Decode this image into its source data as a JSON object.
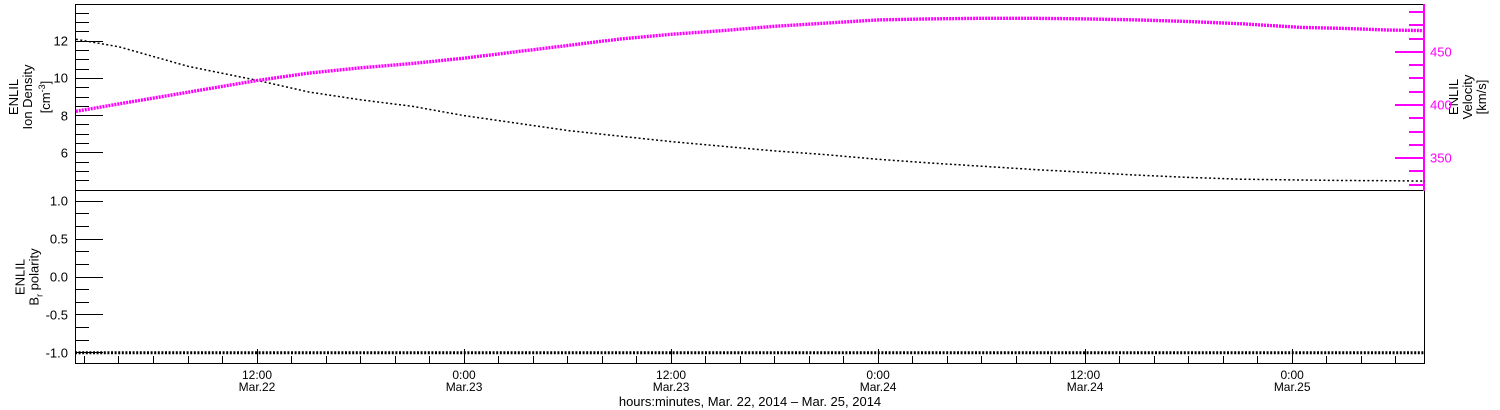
{
  "figure": {
    "background": "#ffffff",
    "curve_colors": {
      "density": "#000000",
      "velocity": "#ff00ff",
      "polarity": "#000000"
    }
  },
  "axes": {
    "density": {
      "title_line1": "ENLIL",
      "title_line2": "Ion Density",
      "unit_prefix": "[cm",
      "unit_sup": "-3",
      "unit_suffix": "]",
      "range": [
        4,
        14
      ],
      "major_ticks": [
        6,
        8,
        10,
        12
      ],
      "major_labels": [
        "6",
        "8",
        "10",
        "12"
      ],
      "minor_step": 0.5
    },
    "velocity": {
      "title_line1": "ENLIL",
      "title_line2": "Velocity",
      "title_line3": "[km/s]",
      "range": [
        320,
        495
      ],
      "major_ticks": [
        350,
        400,
        450
      ],
      "major_labels": [
        "350",
        "400",
        "450"
      ],
      "minor_step": 12.5
    },
    "polarity": {
      "title_line1": "ENLIL",
      "title_line2_prefix": "B",
      "title_line2_sub": "r",
      "title_line2_suffix": " polarity",
      "range": [
        -1.15,
        1.15
      ],
      "major_ticks": [
        -1,
        -0.5,
        0,
        0.5,
        1
      ],
      "major_labels": [
        "-1.0",
        "-0.5",
        "0.0",
        "0.5",
        "1.0"
      ],
      "minor_step": 0.1666667
    },
    "time": {
      "range_hours": [
        1.45,
        79.7
      ],
      "minor_step_hours": 2,
      "major_ticks": [
        {
          "t": 12,
          "time": "12:00",
          "date": "Mar.22"
        },
        {
          "t": 24,
          "time": "0:00",
          "date": "Mar.23"
        },
        {
          "t": 36,
          "time": "12:00",
          "date": "Mar.23"
        },
        {
          "t": 48,
          "time": "0:00",
          "date": "Mar.24"
        },
        {
          "t": 60,
          "time": "12:00",
          "date": "Mar.24"
        },
        {
          "t": 72,
          "time": "0:00",
          "date": "Mar.25"
        }
      ],
      "axis_label": "hours:minutes, Mar. 22, 2014 – Mar. 25, 2014"
    }
  },
  "chart_data": [
    {
      "type": "line",
      "panel": "top",
      "title": "",
      "x_unit": "hours since Mar.22 2014 00:00",
      "x_hours": [
        1.5,
        4,
        8,
        12,
        15,
        18,
        21,
        24,
        27,
        30,
        33,
        36,
        39,
        42,
        45,
        48,
        51,
        54,
        57,
        60,
        63,
        66,
        69,
        72.5,
        75,
        77.5,
        79.7
      ],
      "series": [
        {
          "name": "ENLIL Ion Density",
          "yaxis": "density",
          "units": "cm^-3",
          "color": "#000000",
          "marker": "dots",
          "values": [
            12.1,
            11.7,
            10.65,
            9.9,
            9.27,
            8.85,
            8.5,
            8.0,
            7.6,
            7.2,
            6.9,
            6.6,
            6.35,
            6.1,
            5.9,
            5.65,
            5.45,
            5.28,
            5.1,
            4.95,
            4.8,
            4.68,
            4.58,
            4.54,
            4.51,
            4.5,
            4.48
          ]
        },
        {
          "name": "ENLIL Velocity",
          "yaxis": "velocity",
          "units": "km/s",
          "color": "#ff00ff",
          "marker": "plus",
          "values": [
            394,
            401,
            412,
            423,
            430,
            435,
            439,
            444,
            450,
            456,
            462,
            466.5,
            470,
            474,
            477,
            480,
            481,
            481.5,
            481.5,
            481,
            480,
            478.5,
            476.5,
            473,
            472,
            470.5,
            470
          ]
        }
      ],
      "xlim_hours": [
        1.45,
        79.7
      ],
      "ylim_left": [
        4,
        14
      ],
      "ylim_right": [
        320,
        495
      ],
      "grid": false
    },
    {
      "type": "line",
      "panel": "bottom",
      "title": "",
      "x_hours": [
        1.45,
        79.7
      ],
      "series": [
        {
          "name": "ENLIL Br polarity",
          "yaxis": "polarity",
          "units": "",
          "color": "#000000",
          "marker": "plus",
          "values": [
            -1.0,
            -1.0
          ]
        }
      ],
      "xlim_hours": [
        1.45,
        79.7
      ],
      "ylim": [
        -1.15,
        1.15
      ],
      "grid": false
    }
  ]
}
